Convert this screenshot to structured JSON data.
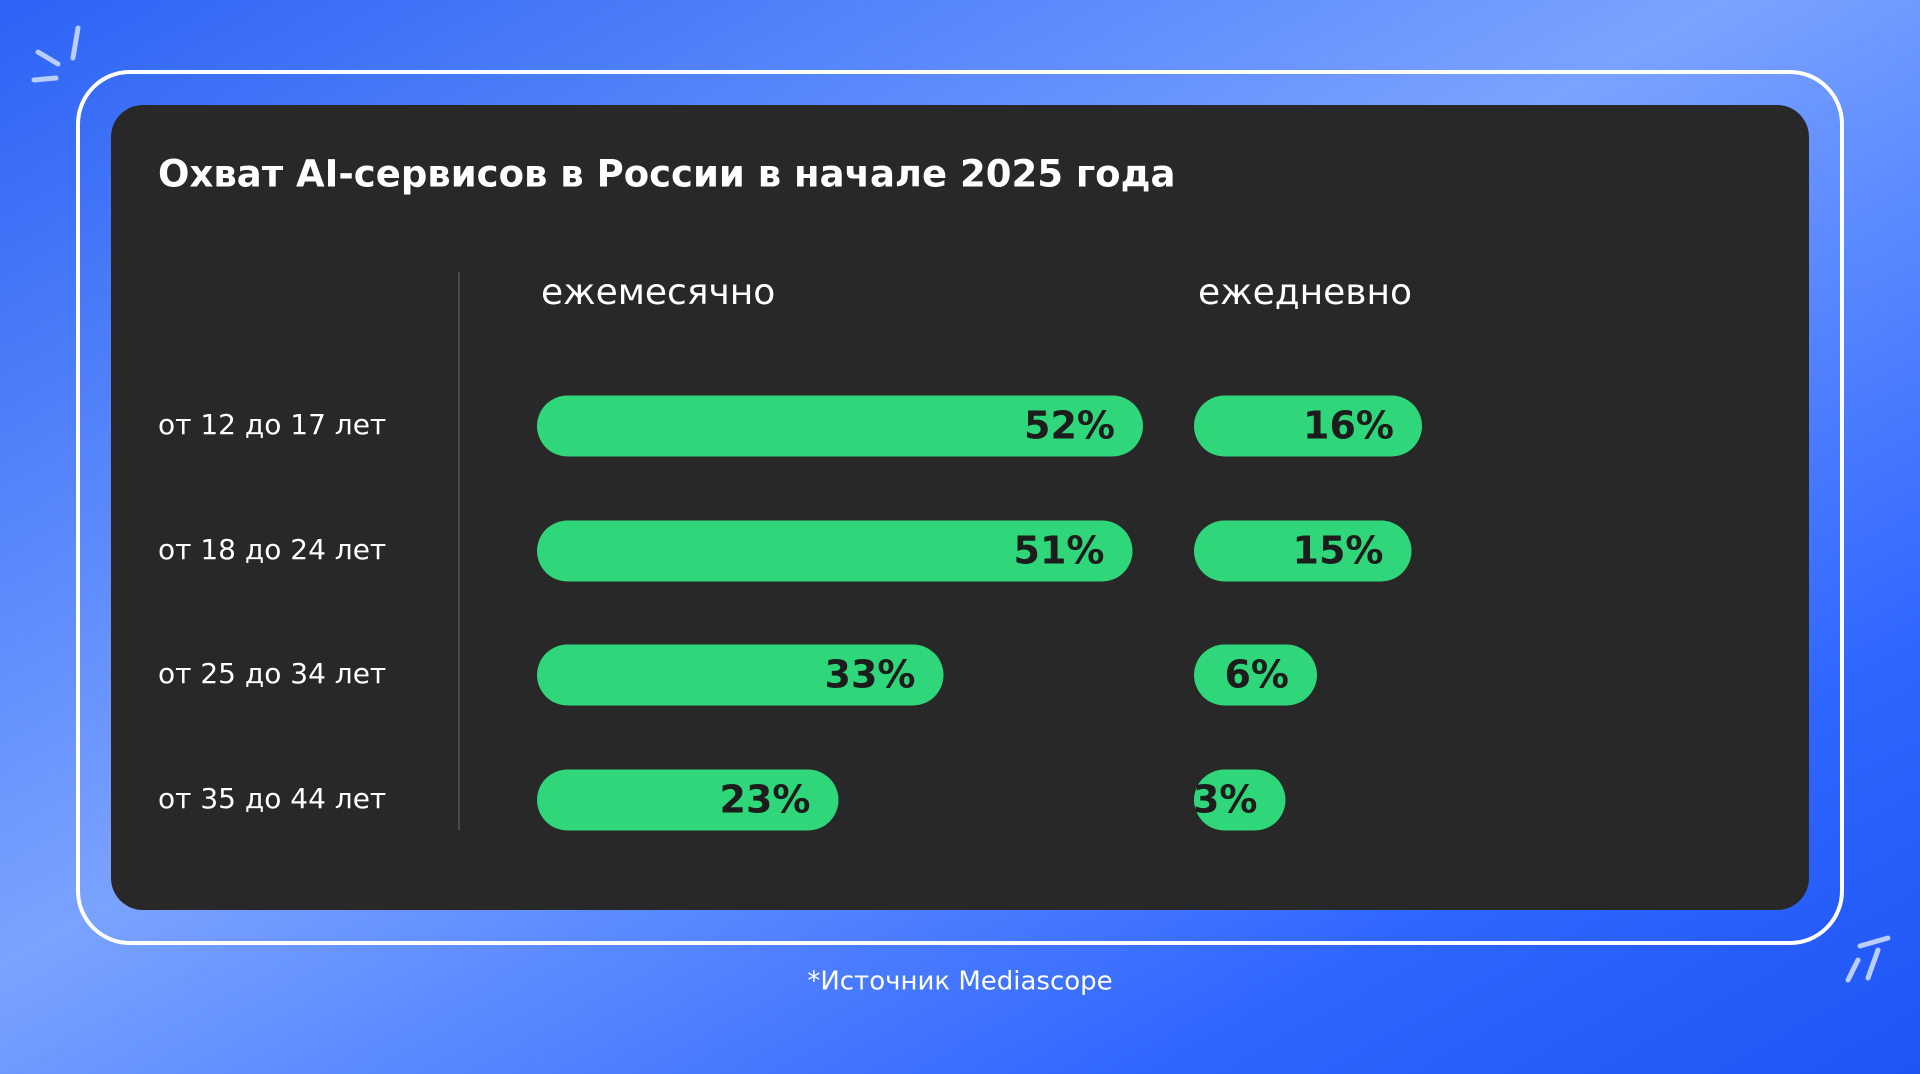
{
  "chart_data": {
    "type": "bar",
    "orientation": "horizontal",
    "title": "Охват AI-сервисов в России в начале 2025 года",
    "categories": [
      "от 12 до 17 лет",
      "от 18 до 24 лет",
      "от 25 до 34 лет",
      "от 35 до 44 лет"
    ],
    "series": [
      {
        "name": "ежемесячно",
        "color": "#2fd77a",
        "values": [
          52,
          51,
          33,
          23
        ],
        "value_labels": [
          "52%",
          "51%",
          "33%",
          "23%"
        ]
      },
      {
        "name": "ежедневно",
        "color": "#2fd77a",
        "values": [
          16,
          15,
          6,
          3
        ],
        "value_labels": [
          "16%",
          "15%",
          "6%",
          "3%"
        ]
      }
    ],
    "note": "*Источник Mediascope"
  }
}
